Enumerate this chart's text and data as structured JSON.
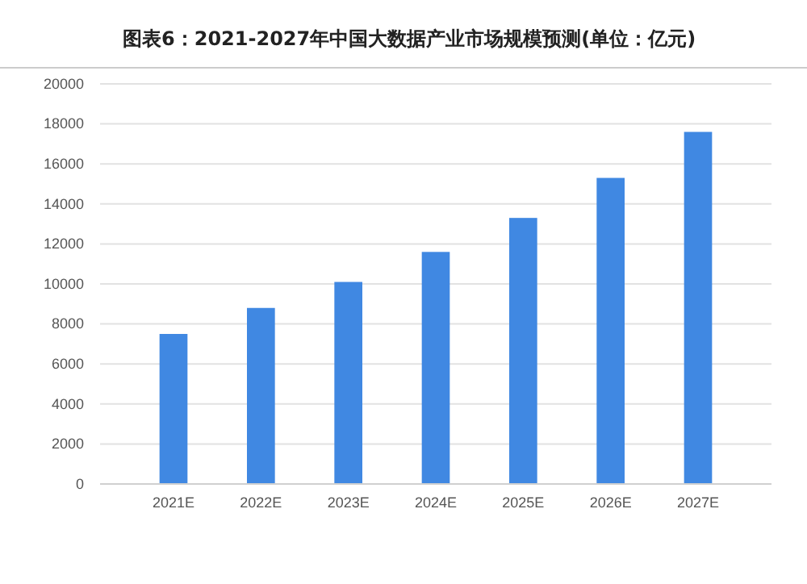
{
  "chart_data": {
    "type": "bar",
    "title": "图表6：2021-2027年中国大数据产业市场规模预测(单位：亿元)",
    "categories": [
      "2021E",
      "2022E",
      "2023E",
      "2024E",
      "2025E",
      "2026E",
      "2027E"
    ],
    "values": [
      7500,
      8800,
      10100,
      11600,
      13300,
      15300,
      17600
    ],
    "color": "#4088e2",
    "ylim": [
      0,
      20000
    ],
    "yticks": [
      0,
      2000,
      4000,
      6000,
      8000,
      10000,
      12000,
      14000,
      16000,
      18000,
      20000
    ],
    "grid": "y"
  }
}
